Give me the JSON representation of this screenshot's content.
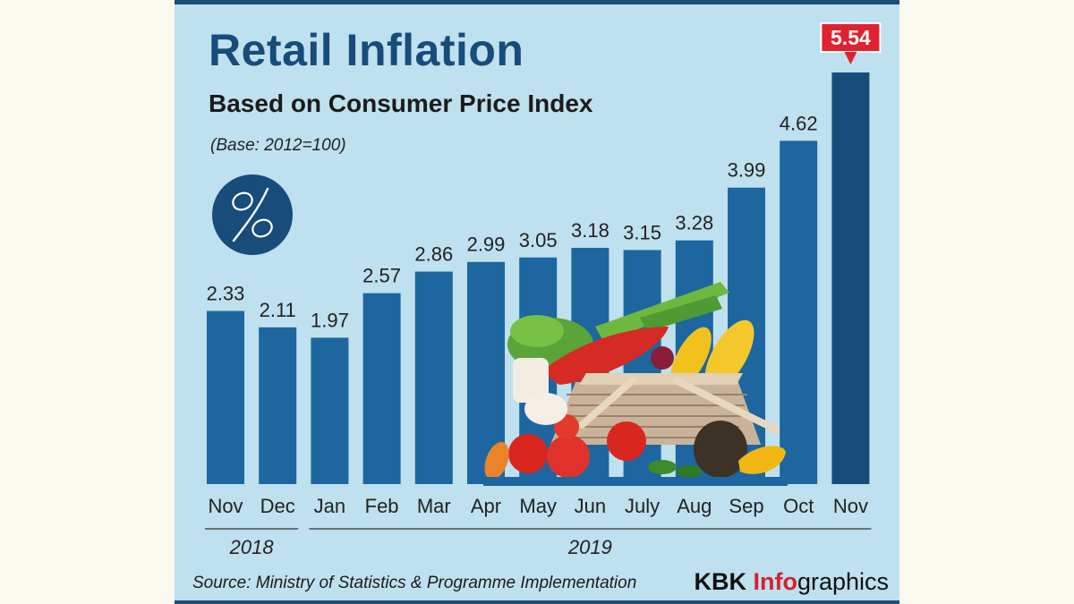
{
  "header": {
    "title": "Retail Inflation",
    "subtitle": "Based on Consumer Price Index",
    "base_note": "(Base: 2012=100)"
  },
  "footer": {
    "source": "Source: Ministry of Statistics & Programme Implementation",
    "brand_part1": "KBK ",
    "brand_part2": "Info",
    "brand_part3": "graphics"
  },
  "icons": {
    "badge": "percent-icon",
    "illustration": "vegetable-basket-icon"
  },
  "colors": {
    "bar": "#1d66a0",
    "bar_highlight": "#174c7b",
    "highlight_label": "#e0212f",
    "background": "#bfe0ee",
    "text": "#222222"
  },
  "chart_data": {
    "type": "bar",
    "title": "Retail Inflation",
    "subtitle": "Based on Consumer Price Index",
    "xlabel": "",
    "ylabel": "",
    "categories": [
      "Nov",
      "Dec",
      "Jan",
      "Feb",
      "Mar",
      "Apr",
      "May",
      "Jun",
      "July",
      "Aug",
      "Sep",
      "Oct",
      "Nov"
    ],
    "values": [
      2.33,
      2.11,
      1.97,
      2.57,
      2.86,
      2.99,
      3.05,
      3.18,
      3.15,
      3.28,
      3.99,
      4.62,
      5.54
    ],
    "value_labels": [
      "2.33",
      "2.11",
      "1.97",
      "2.57",
      "2.86",
      "2.99",
      "3.05",
      "3.18",
      "3.15",
      "3.28",
      "3.99",
      "4.62",
      "5.54"
    ],
    "highlight_index": 12,
    "year_groups": [
      {
        "label": "2018",
        "from": 0,
        "to": 1
      },
      {
        "label": "2019",
        "from": 2,
        "to": 12
      }
    ],
    "ylim": [
      0,
      5.54
    ],
    "grid": false,
    "legend": "none"
  }
}
